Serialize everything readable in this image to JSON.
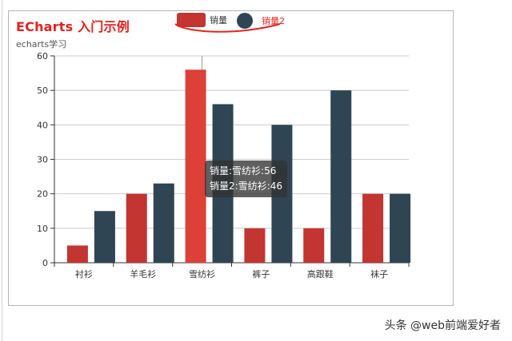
{
  "chart": {
    "title": "ECharts 入门示例",
    "subtitle": "echarts学习",
    "legend": [
      {
        "name": "销量",
        "color": "#c23531",
        "icon": "roundrect-icon"
      },
      {
        "name": "销量2",
        "color": "#2f4554",
        "icon": "circle-icon"
      }
    ],
    "tooltip": {
      "lines": [
        "销量:雪纺衫:56",
        "销量2:雪纺衫:46"
      ]
    },
    "highlight_color": "#dd4036",
    "annotation_color": "#e8201d"
  },
  "watermark": "头条 @web前端爱好者",
  "chart_data": {
    "type": "bar",
    "categories": [
      "衬衫",
      "羊毛衫",
      "雪纺衫",
      "裤子",
      "高跟鞋",
      "袜子"
    ],
    "series": [
      {
        "name": "销量",
        "values": [
          5,
          20,
          56,
          10,
          10,
          20
        ]
      },
      {
        "name": "销量2",
        "values": [
          15,
          23,
          46,
          40,
          50,
          20
        ]
      }
    ],
    "ylim": [
      0,
      60
    ],
    "yticks": [
      0,
      10,
      20,
      30,
      40,
      50,
      60
    ],
    "grid": true,
    "legend_position": "top-center",
    "highlighted_category": "雪纺衫"
  }
}
